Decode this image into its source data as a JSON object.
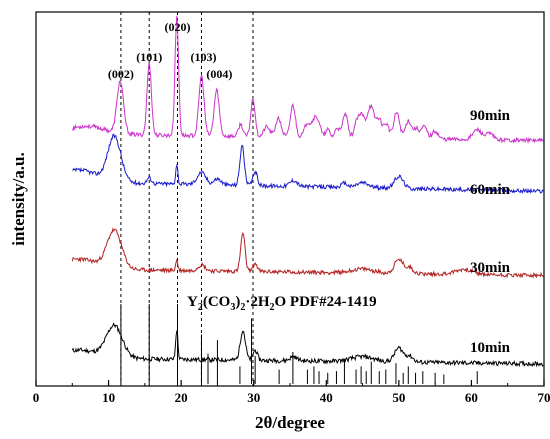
{
  "chart_data": {
    "type": "line",
    "xlabel": "2θ/degree",
    "ylabel": "intensity/a.u.",
    "xlim": [
      0,
      70
    ],
    "xticks": [
      0,
      10,
      20,
      30,
      40,
      50,
      60,
      70
    ],
    "y_ticks_shown": false,
    "grid": false,
    "series": [
      {
        "name": "10min",
        "color": "#000000",
        "x_range": [
          5,
          70
        ]
      },
      {
        "name": "30min",
        "color": "#b22222",
        "x_range": [
          5,
          70
        ]
      },
      {
        "name": "60min",
        "color": "#1a1acc",
        "x_range": [
          5,
          70
        ]
      },
      {
        "name": "90min",
        "color": "#cc33cc",
        "x_range": [
          5,
          70
        ]
      }
    ],
    "reference": {
      "label_main": "Y",
      "label_sub1": "2",
      "label_mid": "(CO",
      "label_sub2": "3",
      "label_mid2": ")",
      "label_sub3": "2",
      "label_tail": "·2H",
      "label_sub4": "2",
      "label_end": "O PDF#24-1419",
      "sticks": [
        {
          "x": 11.7,
          "h": 1.0
        },
        {
          "x": 15.6,
          "h": 1.0
        },
        {
          "x": 19.5,
          "h": 1.0
        },
        {
          "x": 22.8,
          "h": 0.62
        },
        {
          "x": 23.7,
          "h": 0.38
        },
        {
          "x": 25.0,
          "h": 0.55
        },
        {
          "x": 28.1,
          "h": 0.22
        },
        {
          "x": 29.7,
          "h": 0.82
        },
        {
          "x": 30.2,
          "h": 0.35
        },
        {
          "x": 33.5,
          "h": 0.18
        },
        {
          "x": 35.4,
          "h": 0.4
        },
        {
          "x": 37.4,
          "h": 0.18
        },
        {
          "x": 38.3,
          "h": 0.22
        },
        {
          "x": 39.0,
          "h": 0.16
        },
        {
          "x": 40.2,
          "h": 0.14
        },
        {
          "x": 41.4,
          "h": 0.16
        },
        {
          "x": 42.5,
          "h": 0.3
        },
        {
          "x": 44.1,
          "h": 0.18
        },
        {
          "x": 44.8,
          "h": 0.22
        },
        {
          "x": 45.5,
          "h": 0.16
        },
        {
          "x": 46.2,
          "h": 0.28
        },
        {
          "x": 47.3,
          "h": 0.16
        },
        {
          "x": 48.2,
          "h": 0.18
        },
        {
          "x": 49.6,
          "h": 0.26
        },
        {
          "x": 50.6,
          "h": 0.14
        },
        {
          "x": 51.3,
          "h": 0.22
        },
        {
          "x": 52.3,
          "h": 0.14
        },
        {
          "x": 53.3,
          "h": 0.16
        },
        {
          "x": 55.0,
          "h": 0.14
        },
        {
          "x": 56.2,
          "h": 0.12
        },
        {
          "x": 60.8,
          "h": 0.16
        }
      ]
    },
    "indexed_peaks": [
      {
        "hkl": "(002)",
        "x": 11.7
      },
      {
        "hkl": "(101)",
        "x": 15.6
      },
      {
        "hkl": "(020)",
        "x": 19.5
      },
      {
        "hkl": "(103)",
        "x": 22.8
      },
      {
        "hkl": "(004)",
        "x": 25.0
      }
    ],
    "dashed_guides_x": [
      11.7,
      15.6,
      19.5,
      22.8,
      29.9
    ]
  }
}
